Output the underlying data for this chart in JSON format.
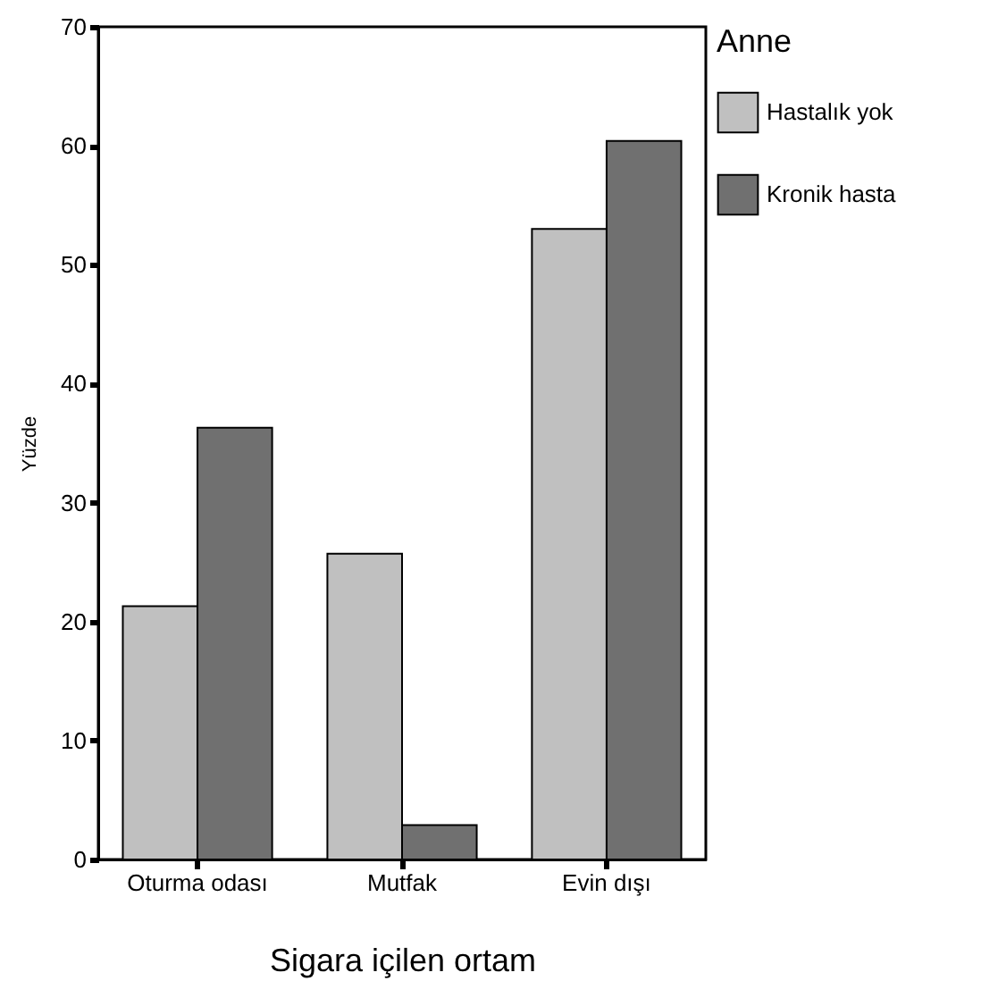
{
  "chart_data": {
    "type": "bar",
    "xlabel": "Sigara içilen ortam",
    "ylabel": "Yüzde",
    "legend_title": "Anne",
    "categories": [
      "Oturma odası",
      "Mutfak",
      "Evin dışı"
    ],
    "series": [
      {
        "name": "Hastalık yok",
        "color": "#c0c0c0",
        "values": [
          21.3,
          25.7,
          53.0
        ]
      },
      {
        "name": "Kronik hasta",
        "color": "#707070",
        "values": [
          36.3,
          2.9,
          60.4
        ]
      }
    ],
    "ylim": [
      0,
      70
    ],
    "yticks": [
      0,
      10,
      20,
      30,
      40,
      50,
      60,
      70
    ],
    "grid": false,
    "legend": "right"
  }
}
